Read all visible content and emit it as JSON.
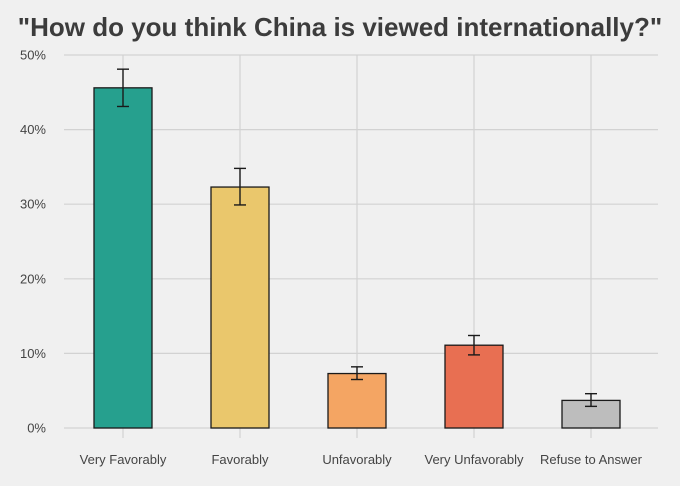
{
  "chart_data": {
    "type": "bar",
    "title": "\"How do you think China is viewed internationally?\"",
    "xlabel": "",
    "ylabel": "",
    "categories": [
      "Very Favorably",
      "Favorably",
      "Unfavorably",
      "Very Unfavorably",
      "Refuse to Answer"
    ],
    "values": [
      45.6,
      32.3,
      7.3,
      11.1,
      3.7
    ],
    "error_low": [
      43.1,
      29.9,
      6.5,
      9.8,
      2.9
    ],
    "error_high": [
      48.1,
      34.8,
      8.2,
      12.4,
      4.6
    ],
    "colors": [
      "#26a08e",
      "#eac76c",
      "#f4a563",
      "#e86f52",
      "#bdbdbd"
    ],
    "ylim": [
      0,
      50
    ],
    "yticks": [
      0,
      10,
      20,
      30,
      40,
      50
    ],
    "ytick_labels": [
      "0%",
      "10%",
      "20%",
      "30%",
      "40%",
      "50%"
    ],
    "grid": true,
    "background": "#f0f0f0",
    "gridline_color": "#d2d2d2"
  }
}
